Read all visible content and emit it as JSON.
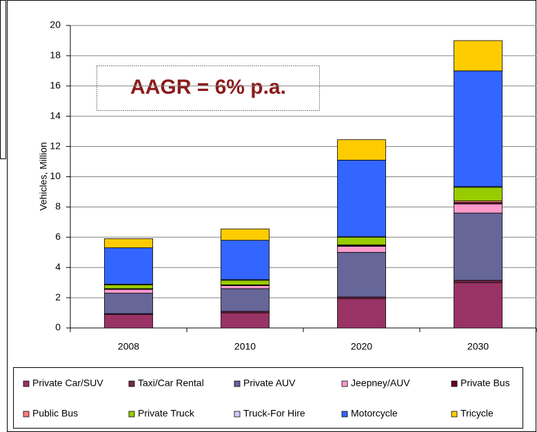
{
  "chart_data": {
    "type": "bar",
    "stacked": true,
    "annotation": "AAGR = 6% p.a.",
    "y_label": "Vehicles, Million",
    "categories": [
      "2008",
      "2010",
      "2020",
      "2030"
    ],
    "ylim": [
      0,
      20
    ],
    "yticks": [
      0,
      2,
      4,
      6,
      8,
      10,
      12,
      14,
      16,
      18,
      20
    ],
    "series": [
      {
        "name": "Private Car/SUV",
        "color": "#993366",
        "values": [
          0.9,
          1.0,
          1.95,
          3.0
        ]
      },
      {
        "name": "Taxi/Car Rental",
        "color": "#7a2848",
        "values": [
          0.05,
          0.1,
          0.1,
          0.15
        ]
      },
      {
        "name": "Private AUV",
        "color": "#666699",
        "values": [
          1.35,
          1.5,
          2.95,
          4.45
        ]
      },
      {
        "name": "Jeepney/AUV",
        "color": "#ff99cc",
        "values": [
          0.25,
          0.2,
          0.4,
          0.6
        ]
      },
      {
        "name": "Private Bus",
        "color": "#660033",
        "values": [
          0.02,
          0.02,
          0.05,
          0.1
        ]
      },
      {
        "name": "Public Bus",
        "color": "#ff7c80",
        "values": [
          0.03,
          0.03,
          0.05,
          0.1
        ]
      },
      {
        "name": "Private Truck",
        "color": "#99cc00",
        "values": [
          0.25,
          0.3,
          0.5,
          0.9
        ]
      },
      {
        "name": "Truck-For Hire",
        "color": "#ccccff",
        "values": [
          0.05,
          0.05,
          0.05,
          0.05
        ]
      },
      {
        "name": "Motorcycle",
        "color": "#3366ff",
        "values": [
          2.4,
          2.6,
          5.05,
          7.65
        ]
      },
      {
        "name": "Tricycle",
        "color": "#ffcc00",
        "values": [
          0.6,
          0.75,
          1.35,
          2.0
        ]
      }
    ]
  }
}
